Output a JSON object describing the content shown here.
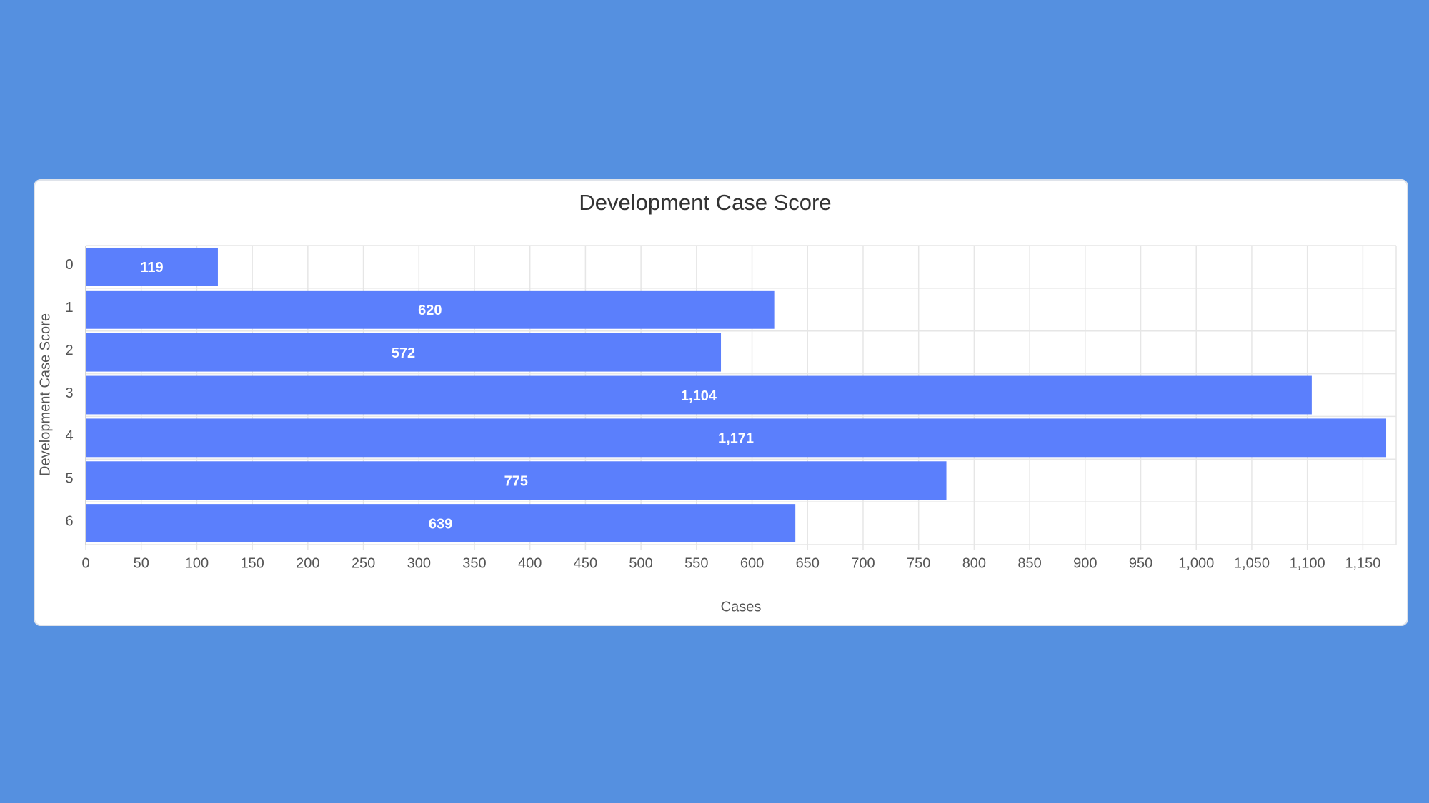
{
  "chart_data": {
    "type": "bar",
    "orientation": "horizontal",
    "title": "Development Case Score",
    "x_label": "Cases",
    "y_label": "Development Case Score",
    "categories": [
      "0",
      "1",
      "2",
      "3",
      "4",
      "5",
      "6"
    ],
    "values": [
      119,
      620,
      572,
      1104,
      1171,
      775,
      639
    ],
    "value_labels": [
      "119",
      "620",
      "572",
      "1,104",
      "1,171",
      "775",
      "639"
    ],
    "color": "#5b7ffc",
    "xlim": [
      0,
      1180
    ],
    "xticks": [
      0,
      50,
      100,
      150,
      200,
      250,
      300,
      350,
      400,
      450,
      500,
      550,
      600,
      650,
      700,
      750,
      800,
      850,
      900,
      950,
      {
        "value": 1000,
        "label": "1,000"
      },
      {
        "value": 1050,
        "label": "1,050"
      },
      {
        "value": 1100,
        "label": "1,100"
      },
      {
        "value": 1150,
        "label": "1,150"
      }
    ],
    "grid": true
  }
}
